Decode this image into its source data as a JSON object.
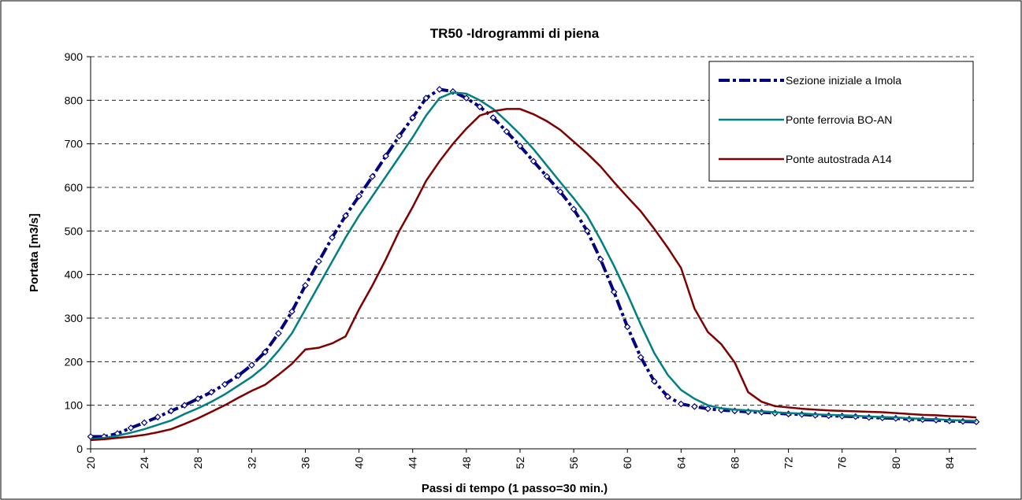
{
  "chart_data": {
    "type": "line",
    "title": "TR50 -Idrogrammi di piena",
    "x_label": "Passi di tempo (1 passo=30 min.)",
    "y_label": "Portata [m3/s]",
    "x": [
      20,
      21,
      22,
      23,
      24,
      25,
      26,
      27,
      28,
      29,
      30,
      31,
      32,
      33,
      34,
      35,
      36,
      37,
      38,
      39,
      40,
      41,
      42,
      43,
      44,
      45,
      46,
      47,
      48,
      49,
      50,
      51,
      52,
      53,
      54,
      55,
      56,
      57,
      58,
      59,
      60,
      61,
      62,
      63,
      64,
      65,
      66,
      67,
      68,
      69,
      70,
      71,
      72,
      73,
      74,
      75,
      76,
      77,
      78,
      79,
      80,
      81,
      82,
      83,
      84,
      85,
      86
    ],
    "series": [
      {
        "name": "Sezione iniziale a Imola",
        "color": "#000080",
        "values": [
          28,
          28,
          35,
          48,
          60,
          73,
          87,
          100,
          115,
          130,
          148,
          168,
          192,
          222,
          265,
          315,
          375,
          430,
          485,
          535,
          580,
          625,
          672,
          718,
          760,
          805,
          825,
          820,
          805,
          785,
          760,
          728,
          695,
          660,
          625,
          590,
          550,
          500,
          435,
          360,
          280,
          210,
          155,
          120,
          103,
          97,
          92,
          89,
          87,
          85,
          84,
          82,
          80,
          79,
          77,
          76,
          75,
          74,
          72,
          71,
          70,
          68,
          67,
          66,
          64,
          63,
          62
        ]
      },
      {
        "name": "Ponte ferrovia BO-AN",
        "color": "#008080",
        "values": [
          22,
          25,
          30,
          37,
          45,
          55,
          65,
          80,
          93,
          108,
          125,
          145,
          165,
          190,
          225,
          265,
          320,
          375,
          430,
          485,
          535,
          580,
          625,
          670,
          715,
          765,
          805,
          818,
          815,
          800,
          780,
          752,
          722,
          688,
          650,
          612,
          575,
          535,
          480,
          420,
          355,
          285,
          220,
          170,
          135,
          115,
          100,
          93,
          90,
          88,
          86,
          84,
          82,
          81,
          79,
          78,
          77,
          76,
          74,
          73,
          72,
          70,
          69,
          68,
          66,
          65,
          64
        ]
      },
      {
        "name": "Ponte autostrada A14",
        "color": "#800000",
        "values": [
          20,
          22,
          25,
          28,
          32,
          38,
          45,
          57,
          70,
          85,
          100,
          117,
          133,
          147,
          170,
          195,
          228,
          232,
          242,
          258,
          320,
          375,
          435,
          500,
          555,
          615,
          660,
          700,
          735,
          765,
          775,
          780,
          780,
          768,
          752,
          732,
          705,
          678,
          648,
          612,
          578,
          545,
          505,
          462,
          415,
          322,
          268,
          240,
          198,
          130,
          108,
          98,
          95,
          92,
          90,
          88,
          87,
          86,
          85,
          84,
          82,
          80,
          78,
          77,
          75,
          74,
          72
        ]
      }
    ],
    "xlim": [
      20,
      86
    ],
    "xticks": [
      20,
      24,
      28,
      32,
      36,
      40,
      44,
      48,
      52,
      56,
      60,
      64,
      68,
      72,
      76,
      80,
      84
    ],
    "ylim": [
      0,
      900
    ],
    "yticks": [
      0,
      100,
      200,
      300,
      400,
      500,
      600,
      700,
      800,
      900
    ],
    "grid": true,
    "legend": "upper right"
  }
}
